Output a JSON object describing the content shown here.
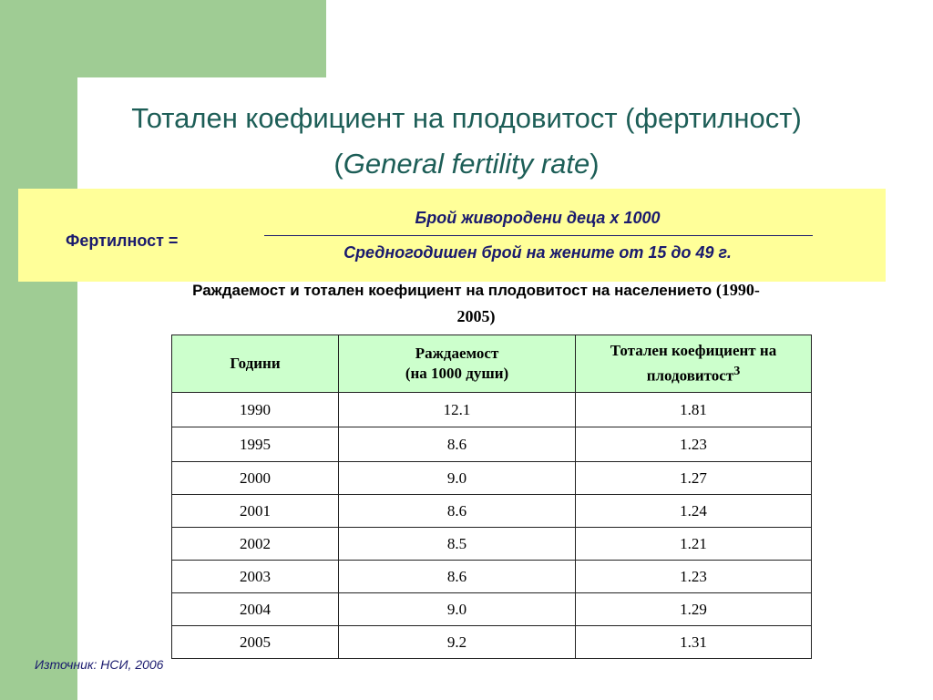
{
  "title": {
    "line1": "Тотален коефициент на плодовитост (фертилност)",
    "line2_open": "(",
    "line2_italic": "General fertility rate",
    "line2_close": ")"
  },
  "formula": {
    "label": "Фертилност  =",
    "numerator": "Брой живородени деца  х  1000",
    "denominator": "Средногодишен брой на жените от 15 до 49 г."
  },
  "caption": {
    "text": "Раждаемост и тотален коефициент на плодовитост на населението ",
    "period_part1": "(1990-",
    "period_part2": "2005)"
  },
  "table": {
    "headers": {
      "years": "Години",
      "birth_rate_line1": "Раждаемост",
      "birth_rate_line2": "(на 1000 души)",
      "tfr_line1": "Тотален коефициент на",
      "tfr_line2": "плодовитост",
      "tfr_sup": "3"
    },
    "rows": [
      {
        "year": "1990",
        "birth_rate": "12.1",
        "tfr": "1.81"
      },
      {
        "year": "1995",
        "birth_rate": "8.6",
        "tfr": "1.23"
      },
      {
        "year": "2000",
        "birth_rate": "9.0",
        "tfr": "1.27"
      },
      {
        "year": "2001",
        "birth_rate": "8.6",
        "tfr": "1.24"
      },
      {
        "year": "2002",
        "birth_rate": "8.5",
        "tfr": "1.21"
      },
      {
        "year": "2003",
        "birth_rate": "8.6",
        "tfr": "1.23"
      },
      {
        "year": "2004",
        "birth_rate": "9.0",
        "tfr": "1.29"
      },
      {
        "year": "2005",
        "birth_rate": "9.2",
        "tfr": "1.31"
      }
    ]
  },
  "source": "Източник: НСИ, 2006",
  "colors": {
    "sidebar_green": "#9fcc94",
    "title_teal": "#1d5e57",
    "formula_yellow": "#ffff99",
    "formula_text": "#1a1a6e",
    "header_green": "#ccffcc"
  }
}
